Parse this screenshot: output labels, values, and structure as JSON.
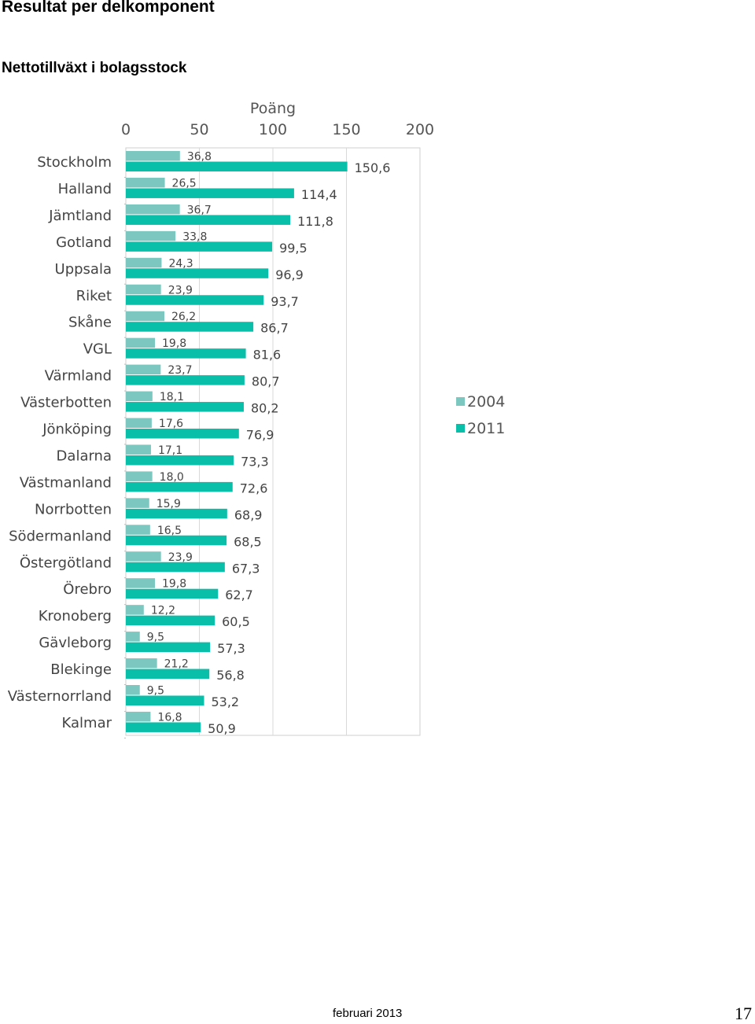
{
  "page": {
    "title": "Resultat per delkomponent",
    "subtitle": "Nettotillväxt i bolagsstock",
    "footer_date": "februari 2013",
    "page_number": "17"
  },
  "chart_data": {
    "type": "bar",
    "orientation": "horizontal",
    "axis_label": "Poäng",
    "xlim": [
      0,
      200
    ],
    "ticks": [
      0,
      50,
      100,
      150,
      200
    ],
    "grid": true,
    "legend_position": "right",
    "categories": [
      "Stockholm",
      "Halland",
      "Jämtland",
      "Gotland",
      "Uppsala",
      "Riket",
      "Skåne",
      "VGL",
      "Värmland",
      "Västerbotten",
      "Jönköping",
      "Dalarna",
      "Västmanland",
      "Norrbotten",
      "Södermanland",
      "Östergötland",
      "Örebro",
      "Kronoberg",
      "Gävleborg",
      "Blekinge",
      "Västernorrland",
      "Kalmar"
    ],
    "series": [
      {
        "name": "2004",
        "color": "#7cc8c0",
        "values": [
          36.8,
          26.5,
          36.7,
          33.8,
          24.3,
          23.9,
          26.2,
          19.8,
          23.7,
          18.1,
          17.6,
          17.1,
          18.0,
          15.9,
          16.5,
          23.9,
          19.8,
          12.2,
          9.5,
          21.2,
          9.5,
          16.8
        ],
        "labels": [
          "36,8",
          "26,5",
          "36,7",
          "33,8",
          "24,3",
          "23,9",
          "26,2",
          "19,8",
          "23,7",
          "18,1",
          "17,6",
          "17,1",
          "18,0",
          "15,9",
          "16,5",
          "23,9",
          "19,8",
          "12,2",
          "9,5",
          "21,2",
          "9,5",
          "16,8"
        ]
      },
      {
        "name": "2011",
        "color": "#0abfaa",
        "values": [
          150.6,
          114.4,
          111.8,
          99.5,
          96.9,
          93.7,
          86.7,
          81.6,
          80.7,
          80.2,
          76.9,
          73.3,
          72.6,
          68.9,
          68.5,
          67.3,
          62.7,
          60.5,
          57.3,
          56.8,
          53.2,
          50.9
        ],
        "labels": [
          "150,6",
          "114,4",
          "111,8",
          "99,5",
          "96,9",
          "93,7",
          "86,7",
          "81,6",
          "80,7",
          "80,2",
          "76,9",
          "73,3",
          "72,6",
          "68,9",
          "68,5",
          "67,3",
          "62,7",
          "60,5",
          "57,3",
          "56,8",
          "53,2",
          "50,9"
        ]
      }
    ]
  }
}
